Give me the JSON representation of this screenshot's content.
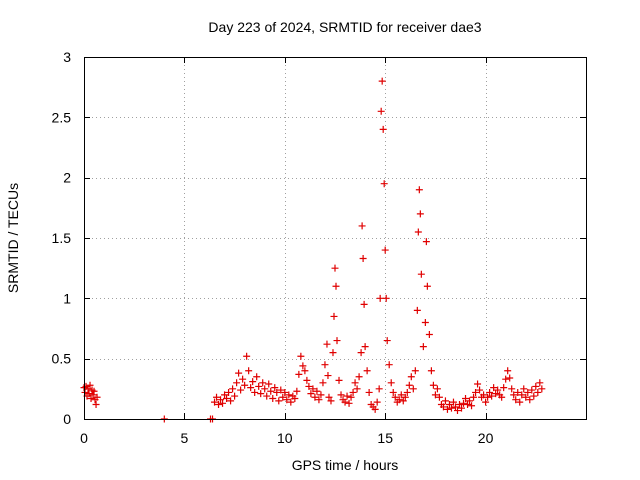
{
  "chart_data": {
    "type": "scatter",
    "title": "Day 223 of 2024, SRMTID for receiver dae3",
    "xlabel": "GPS time / hours",
    "ylabel": "SRMTID / TECUs",
    "xlim": [
      0,
      25
    ],
    "ylim": [
      0,
      3
    ],
    "xticks": [
      0,
      5,
      10,
      15,
      20
    ],
    "xtick_labels": [
      "0",
      "5",
      "10",
      "15",
      "20"
    ],
    "yticks": [
      0,
      0.5,
      1,
      1.5,
      2,
      2.5,
      3
    ],
    "ytick_labels": [
      "0",
      "0.5",
      "1",
      "1.5",
      "2",
      "2.5",
      "3"
    ],
    "grid": true,
    "marker": "plus",
    "series": [
      {
        "name": "SRMTID",
        "color": "#e00000",
        "points": [
          [
            0.0,
            0.26
          ],
          [
            0.05,
            0.22
          ],
          [
            0.1,
            0.27
          ],
          [
            0.15,
            0.19
          ],
          [
            0.2,
            0.25
          ],
          [
            0.25,
            0.21
          ],
          [
            0.3,
            0.28
          ],
          [
            0.35,
            0.17
          ],
          [
            0.4,
            0.24
          ],
          [
            0.45,
            0.2
          ],
          [
            0.5,
            0.23
          ],
          [
            0.55,
            0.16
          ],
          [
            0.6,
            0.12
          ],
          [
            0.65,
            0.18
          ],
          [
            4.0,
            0.0
          ],
          [
            6.3,
            0.0
          ],
          [
            6.4,
            0.0
          ],
          [
            6.5,
            0.14
          ],
          [
            6.6,
            0.18
          ],
          [
            6.7,
            0.12
          ],
          [
            6.8,
            0.16
          ],
          [
            6.9,
            0.13
          ],
          [
            7.0,
            0.2
          ],
          [
            7.1,
            0.17
          ],
          [
            7.2,
            0.22
          ],
          [
            7.3,
            0.15
          ],
          [
            7.4,
            0.25
          ],
          [
            7.5,
            0.19
          ],
          [
            7.6,
            0.3
          ],
          [
            7.7,
            0.38
          ],
          [
            7.8,
            0.24
          ],
          [
            7.9,
            0.33
          ],
          [
            8.0,
            0.28
          ],
          [
            8.1,
            0.52
          ],
          [
            8.2,
            0.4
          ],
          [
            8.3,
            0.26
          ],
          [
            8.4,
            0.31
          ],
          [
            8.5,
            0.22
          ],
          [
            8.6,
            0.35
          ],
          [
            8.7,
            0.27
          ],
          [
            8.8,
            0.21
          ],
          [
            8.9,
            0.3
          ],
          [
            9.0,
            0.25
          ],
          [
            9.1,
            0.19
          ],
          [
            9.2,
            0.29
          ],
          [
            9.3,
            0.23
          ],
          [
            9.4,
            0.17
          ],
          [
            9.5,
            0.26
          ],
          [
            9.6,
            0.22
          ],
          [
            9.7,
            0.15
          ],
          [
            9.8,
            0.24
          ],
          [
            9.9,
            0.18
          ],
          [
            10.0,
            0.22
          ],
          [
            10.1,
            0.16
          ],
          [
            10.2,
            0.2
          ],
          [
            10.3,
            0.14
          ],
          [
            10.4,
            0.19
          ],
          [
            10.5,
            0.17
          ],
          [
            10.6,
            0.23
          ],
          [
            10.7,
            0.37
          ],
          [
            10.8,
            0.52
          ],
          [
            10.9,
            0.44
          ],
          [
            11.0,
            0.4
          ],
          [
            11.1,
            0.32
          ],
          [
            11.2,
            0.27
          ],
          [
            11.3,
            0.21
          ],
          [
            11.4,
            0.25
          ],
          [
            11.5,
            0.18
          ],
          [
            11.6,
            0.23
          ],
          [
            11.7,
            0.16
          ],
          [
            11.8,
            0.2
          ],
          [
            11.9,
            0.3
          ],
          [
            12.0,
            0.45
          ],
          [
            12.1,
            0.62
          ],
          [
            12.15,
            0.36
          ],
          [
            12.2,
            0.18
          ],
          [
            12.3,
            0.15
          ],
          [
            12.4,
            0.55
          ],
          [
            12.45,
            0.85
          ],
          [
            12.5,
            1.25
          ],
          [
            12.55,
            1.1
          ],
          [
            12.6,
            0.65
          ],
          [
            12.7,
            0.32
          ],
          [
            12.8,
            0.2
          ],
          [
            12.9,
            0.16
          ],
          [
            13.0,
            0.14
          ],
          [
            13.1,
            0.19
          ],
          [
            13.2,
            0.13
          ],
          [
            13.3,
            0.18
          ],
          [
            13.4,
            0.22
          ],
          [
            13.5,
            0.3
          ],
          [
            13.6,
            0.25
          ],
          [
            13.7,
            0.35
          ],
          [
            13.8,
            0.55
          ],
          [
            13.85,
            1.6
          ],
          [
            13.9,
            1.33
          ],
          [
            13.95,
            0.95
          ],
          [
            14.0,
            0.6
          ],
          [
            14.1,
            0.4
          ],
          [
            14.2,
            0.22
          ],
          [
            14.3,
            0.12
          ],
          [
            14.4,
            0.1
          ],
          [
            14.5,
            0.08
          ],
          [
            14.6,
            0.14
          ],
          [
            14.7,
            0.25
          ],
          [
            14.75,
            1.0
          ],
          [
            14.8,
            2.55
          ],
          [
            14.85,
            2.8
          ],
          [
            14.9,
            2.4
          ],
          [
            14.95,
            1.95
          ],
          [
            15.0,
            1.4
          ],
          [
            15.05,
            1.0
          ],
          [
            15.1,
            0.65
          ],
          [
            15.2,
            0.45
          ],
          [
            15.3,
            0.3
          ],
          [
            15.4,
            0.22
          ],
          [
            15.5,
            0.18
          ],
          [
            15.6,
            0.14
          ],
          [
            15.7,
            0.16
          ],
          [
            15.8,
            0.2
          ],
          [
            15.9,
            0.15
          ],
          [
            16.0,
            0.18
          ],
          [
            16.1,
            0.22
          ],
          [
            16.2,
            0.28
          ],
          [
            16.3,
            0.35
          ],
          [
            16.4,
            0.25
          ],
          [
            16.5,
            0.4
          ],
          [
            16.6,
            0.9
          ],
          [
            16.65,
            1.55
          ],
          [
            16.7,
            1.9
          ],
          [
            16.75,
            1.7
          ],
          [
            16.8,
            1.2
          ],
          [
            16.9,
            0.6
          ],
          [
            17.0,
            0.8
          ],
          [
            17.05,
            1.47
          ],
          [
            17.1,
            1.1
          ],
          [
            17.2,
            0.7
          ],
          [
            17.3,
            0.4
          ],
          [
            17.4,
            0.28
          ],
          [
            17.5,
            0.2
          ],
          [
            17.6,
            0.25
          ],
          [
            17.7,
            0.18
          ],
          [
            17.8,
            0.12
          ],
          [
            17.9,
            0.1
          ],
          [
            18.0,
            0.15
          ],
          [
            18.1,
            0.08
          ],
          [
            18.2,
            0.12
          ],
          [
            18.3,
            0.09
          ],
          [
            18.4,
            0.14
          ],
          [
            18.5,
            0.1
          ],
          [
            18.6,
            0.07
          ],
          [
            18.7,
            0.12
          ],
          [
            18.8,
            0.09
          ],
          [
            18.9,
            0.13
          ],
          [
            19.0,
            0.17
          ],
          [
            19.1,
            0.12
          ],
          [
            19.2,
            0.15
          ],
          [
            19.3,
            0.11
          ],
          [
            19.4,
            0.18
          ],
          [
            19.5,
            0.22
          ],
          [
            19.6,
            0.29
          ],
          [
            19.7,
            0.24
          ],
          [
            19.8,
            0.18
          ],
          [
            19.9,
            0.2
          ],
          [
            20.0,
            0.14
          ],
          [
            20.1,
            0.18
          ],
          [
            20.2,
            0.22
          ],
          [
            20.3,
            0.19
          ],
          [
            20.4,
            0.26
          ],
          [
            20.5,
            0.21
          ],
          [
            20.6,
            0.24
          ],
          [
            20.7,
            0.2
          ],
          [
            20.8,
            0.18
          ],
          [
            20.9,
            0.26
          ],
          [
            21.0,
            0.33
          ],
          [
            21.1,
            0.4
          ],
          [
            21.2,
            0.34
          ],
          [
            21.3,
            0.25
          ],
          [
            21.4,
            0.2
          ],
          [
            21.5,
            0.16
          ],
          [
            21.6,
            0.22
          ],
          [
            21.7,
            0.14
          ],
          [
            21.8,
            0.2
          ],
          [
            21.9,
            0.25
          ],
          [
            22.0,
            0.18
          ],
          [
            22.1,
            0.22
          ],
          [
            22.2,
            0.16
          ],
          [
            22.3,
            0.24
          ],
          [
            22.4,
            0.19
          ],
          [
            22.5,
            0.27
          ],
          [
            22.6,
            0.22
          ],
          [
            22.7,
            0.3
          ],
          [
            22.8,
            0.25
          ]
        ]
      }
    ]
  }
}
